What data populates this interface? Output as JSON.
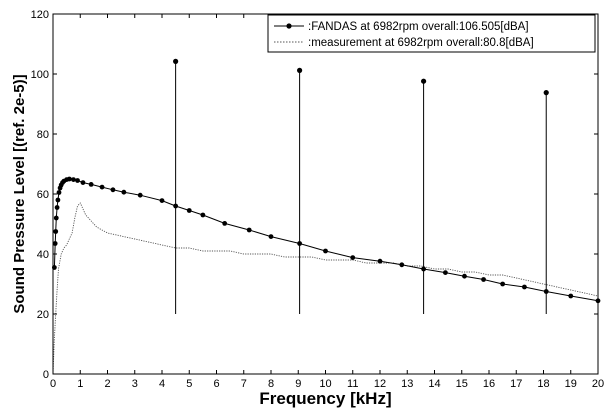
{
  "chart_data": {
    "type": "line",
    "xlabel": "Frequency [kHz]",
    "ylabel": "Sound Pressure Level [(ref. 2e-5)]",
    "xlim": [
      0,
      20
    ],
    "ylim": [
      0,
      120
    ],
    "xticks": [
      0,
      1,
      2,
      3,
      4,
      5,
      6,
      7,
      8,
      9,
      10,
      11,
      12,
      13,
      14,
      15,
      16,
      17,
      18,
      19,
      20
    ],
    "yticks": [
      0,
      20,
      40,
      60,
      80,
      100,
      120
    ],
    "grid": false,
    "legend_position": "top-right",
    "series": [
      {
        "name": ":FANDAS at 6982rpm  overall:106.505[dBA]",
        "style": "solid line with circle markers",
        "color": "#000000",
        "x": [
          0.05,
          0.08,
          0.1,
          0.12,
          0.15,
          0.18,
          0.22,
          0.26,
          0.3,
          0.35,
          0.4,
          0.5,
          0.6,
          0.75,
          0.9,
          1.1,
          1.4,
          1.8,
          2.2,
          2.6,
          3.2,
          4.0,
          4.5,
          5.0,
          5.5,
          6.3,
          7.2,
          8.0,
          9.05,
          10.0,
          11.0,
          12.0,
          12.8,
          13.6,
          14.4,
          15.1,
          15.8,
          16.5,
          17.3,
          18.1,
          19.0,
          20.0
        ],
        "y": [
          35.5,
          43.5,
          47.5,
          52.0,
          55.5,
          58.0,
          60.5,
          62.0,
          63.0,
          63.8,
          64.3,
          64.8,
          65.0,
          64.8,
          64.5,
          63.8,
          63.2,
          62.3,
          61.4,
          60.6,
          59.6,
          57.8,
          56.0,
          54.5,
          53.0,
          50.2,
          48.0,
          45.8,
          43.5,
          41.0,
          38.8,
          37.6,
          36.4,
          35.0,
          33.8,
          32.6,
          31.5,
          30.0,
          29.0,
          27.5,
          26.0,
          24.4
        ],
        "peaks": [
          {
            "x": 4.5,
            "y": 104.2
          },
          {
            "x": 9.05,
            "y": 101.2
          },
          {
            "x": 13.6,
            "y": 97.6
          },
          {
            "x": 18.1,
            "y": 93.8
          }
        ]
      },
      {
        "name": ":measurement at 6982rpm  overall:80.8[dBA]",
        "style": "dotted line",
        "color": "#555555",
        "x": [
          0,
          0.05,
          0.1,
          0.15,
          0.2,
          0.3,
          0.4,
          0.5,
          0.6,
          0.7,
          0.8,
          0.9,
          1.0,
          1.1,
          1.2,
          1.4,
          1.6,
          2.0,
          2.5,
          3.0,
          3.5,
          4.0,
          4.5,
          5.0,
          5.5,
          6.0,
          6.5,
          7.0,
          7.5,
          8.0,
          8.5,
          9.0,
          9.5,
          10.0,
          10.5,
          11.0,
          11.5,
          12.0,
          12.5,
          13.0,
          13.5,
          14.0,
          14.5,
          15.0,
          15.5,
          16.0,
          16.5,
          17.0,
          17.5,
          18.0,
          18.5,
          19.0,
          19.5,
          20.0
        ],
        "y": [
          0,
          12,
          20,
          28,
          35,
          40,
          42,
          43,
          45,
          47,
          52,
          56,
          57,
          55,
          53,
          51,
          49,
          47,
          46,
          45,
          44,
          43,
          42,
          42,
          41,
          41,
          41,
          40,
          40,
          40,
          39,
          39,
          39,
          38,
          38,
          38,
          37,
          37,
          37,
          36,
          36,
          35,
          35,
          34,
          34,
          33,
          33,
          32,
          31,
          30,
          29,
          28,
          27,
          26
        ]
      }
    ]
  }
}
